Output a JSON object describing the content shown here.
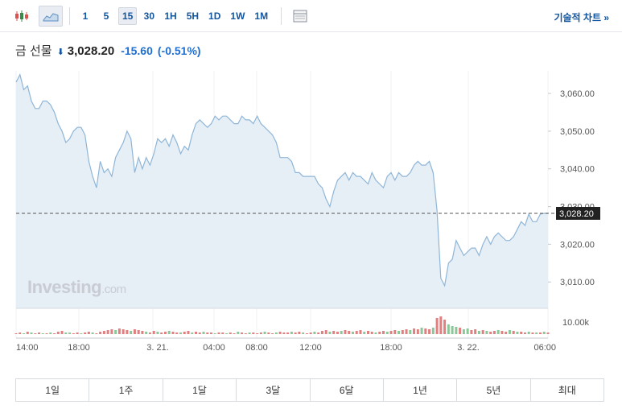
{
  "toolbar": {
    "chart_type_icons": [
      "candlestick-icon",
      "area-chart-icon"
    ],
    "intervals": [
      "1",
      "5",
      "15",
      "30",
      "1H",
      "5H",
      "1D",
      "1W",
      "1M"
    ],
    "active_interval": "15",
    "settings_icon": "table-icon",
    "tech_chart_label": "기술적 차트 »"
  },
  "quote": {
    "name": "금 선물",
    "direction": "down",
    "price": "3,028.20",
    "change": "-15.60",
    "change_pct": "(-0.51%)"
  },
  "colors": {
    "line": "#8fb6d8",
    "area": "#e6eef6",
    "up_bar": "#e08080",
    "down_bar": "#8cc79a",
    "accent": "#1256a0",
    "last_price_bg": "#222222"
  },
  "watermark": {
    "brand": "Investing",
    "suffix": ".com"
  },
  "chart_data": {
    "type": "area",
    "y_ticks": [
      "3,060.00",
      "3,050.00",
      "3,040.00",
      "3,030.00",
      "3,020.00",
      "3,010.00"
    ],
    "ylim": [
      3003,
      3066
    ],
    "last_price_label": "3,028.20",
    "last_price": 3028.2,
    "volume_tick": "10.00k",
    "x_labels": [
      "14:00",
      "18:00",
      "3. 21.",
      "04:00",
      "08:00",
      "12:00",
      "18:00",
      "3. 22.",
      "06:00"
    ],
    "series": [
      {
        "values": [
          3063,
          3065,
          3061,
          3062,
          3058,
          3056,
          3056,
          3058,
          3058,
          3057,
          3055,
          3052,
          3050,
          3047,
          3048,
          3050,
          3051,
          3051,
          3049,
          3042,
          3038,
          3035,
          3042,
          3039,
          3040,
          3038,
          3043,
          3045,
          3047,
          3050,
          3048,
          3039,
          3043,
          3040,
          3043,
          3041,
          3044,
          3048,
          3047,
          3048,
          3046,
          3049,
          3047,
          3044,
          3046,
          3045,
          3049,
          3052,
          3053,
          3052,
          3051,
          3052,
          3054,
          3053,
          3054,
          3054,
          3053,
          3052,
          3052,
          3054,
          3053,
          3053,
          3052,
          3054,
          3052,
          3051,
          3050,
          3049,
          3047,
          3043,
          3043,
          3043,
          3042,
          3039,
          3039,
          3038,
          3038,
          3038,
          3038,
          3036,
          3035,
          3032,
          3030,
          3034,
          3037,
          3038,
          3039,
          3037,
          3039,
          3038,
          3038,
          3037,
          3036,
          3039,
          3037,
          3036,
          3035,
          3038,
          3039,
          3037,
          3039,
          3038,
          3038,
          3039,
          3041,
          3042,
          3041,
          3041,
          3042,
          3039,
          3029,
          3011,
          3009,
          3015,
          3016,
          3021,
          3019,
          3017,
          3018,
          3019,
          3019,
          3017,
          3020,
          3022,
          3020,
          3022,
          3023,
          3022,
          3021,
          3021,
          3022,
          3024,
          3026,
          3025,
          3028,
          3026,
          3026,
          3028,
          3028.2,
          3028.2
        ],
        "volumes": [
          1,
          2,
          1,
          3,
          2,
          1,
          2,
          1,
          1,
          2,
          1,
          3,
          4,
          2,
          2,
          1,
          2,
          1,
          2,
          3,
          2,
          1,
          3,
          4,
          5,
          6,
          5,
          7,
          6,
          5,
          4,
          6,
          5,
          4,
          3,
          2,
          4,
          3,
          2,
          3,
          4,
          3,
          2,
          2,
          3,
          4,
          2,
          3,
          2,
          3,
          2,
          2,
          1,
          2,
          2,
          1,
          2,
          1,
          3,
          2,
          1,
          2,
          2,
          1,
          2,
          3,
          2,
          1,
          2,
          3,
          2,
          2,
          3,
          2,
          3,
          2,
          1,
          2,
          3,
          2,
          4,
          5,
          3,
          4,
          3,
          4,
          5,
          4,
          3,
          4,
          5,
          3,
          4,
          3,
          2,
          3,
          4,
          3,
          4,
          5,
          4,
          5,
          6,
          5,
          7,
          6,
          8,
          7,
          6,
          8,
          20,
          22,
          18,
          12,
          10,
          9,
          8,
          6,
          7,
          5,
          6,
          4,
          5,
          4,
          3,
          4,
          5,
          4,
          3,
          5,
          4,
          3,
          3,
          2,
          3,
          2,
          2,
          2,
          3,
          2
        ],
        "volume_colors": [
          "u",
          "u",
          "d",
          "u",
          "d",
          "u",
          "u",
          "d",
          "u",
          "d",
          "u",
          "u",
          "u",
          "d",
          "d",
          "u",
          "u",
          "d",
          "u",
          "u",
          "d",
          "u",
          "u",
          "u",
          "u",
          "u",
          "d",
          "u",
          "u",
          "u",
          "d",
          "u",
          "u",
          "u",
          "d",
          "u",
          "u",
          "d",
          "u",
          "u",
          "d",
          "u",
          "u",
          "d",
          "u",
          "u",
          "d",
          "u",
          "u",
          "d",
          "u",
          "u",
          "d",
          "u",
          "u",
          "d",
          "u",
          "u",
          "d",
          "u",
          "u",
          "d",
          "u",
          "u",
          "u",
          "d",
          "u",
          "u",
          "d",
          "u",
          "u",
          "u",
          "d",
          "u",
          "u",
          "d",
          "u",
          "u",
          "d",
          "u",
          "u",
          "u",
          "d",
          "u",
          "u",
          "d",
          "u",
          "u",
          "d",
          "u",
          "u",
          "d",
          "u",
          "u",
          "d",
          "u",
          "u",
          "d",
          "u",
          "u",
          "d",
          "u",
          "u",
          "d",
          "u",
          "u",
          "d",
          "u",
          "u",
          "d",
          "u",
          "u",
          "u",
          "d",
          "d",
          "d",
          "u",
          "d",
          "d",
          "u",
          "u",
          "d",
          "u",
          "d",
          "u",
          "u",
          "d",
          "u",
          "u",
          "d",
          "u",
          "d",
          "u",
          "u",
          "d",
          "u",
          "d",
          "u",
          "d",
          "u"
        ]
      }
    ]
  },
  "ranges": [
    "1일",
    "1주",
    "1달",
    "3달",
    "6달",
    "1년",
    "5년",
    "최대"
  ]
}
